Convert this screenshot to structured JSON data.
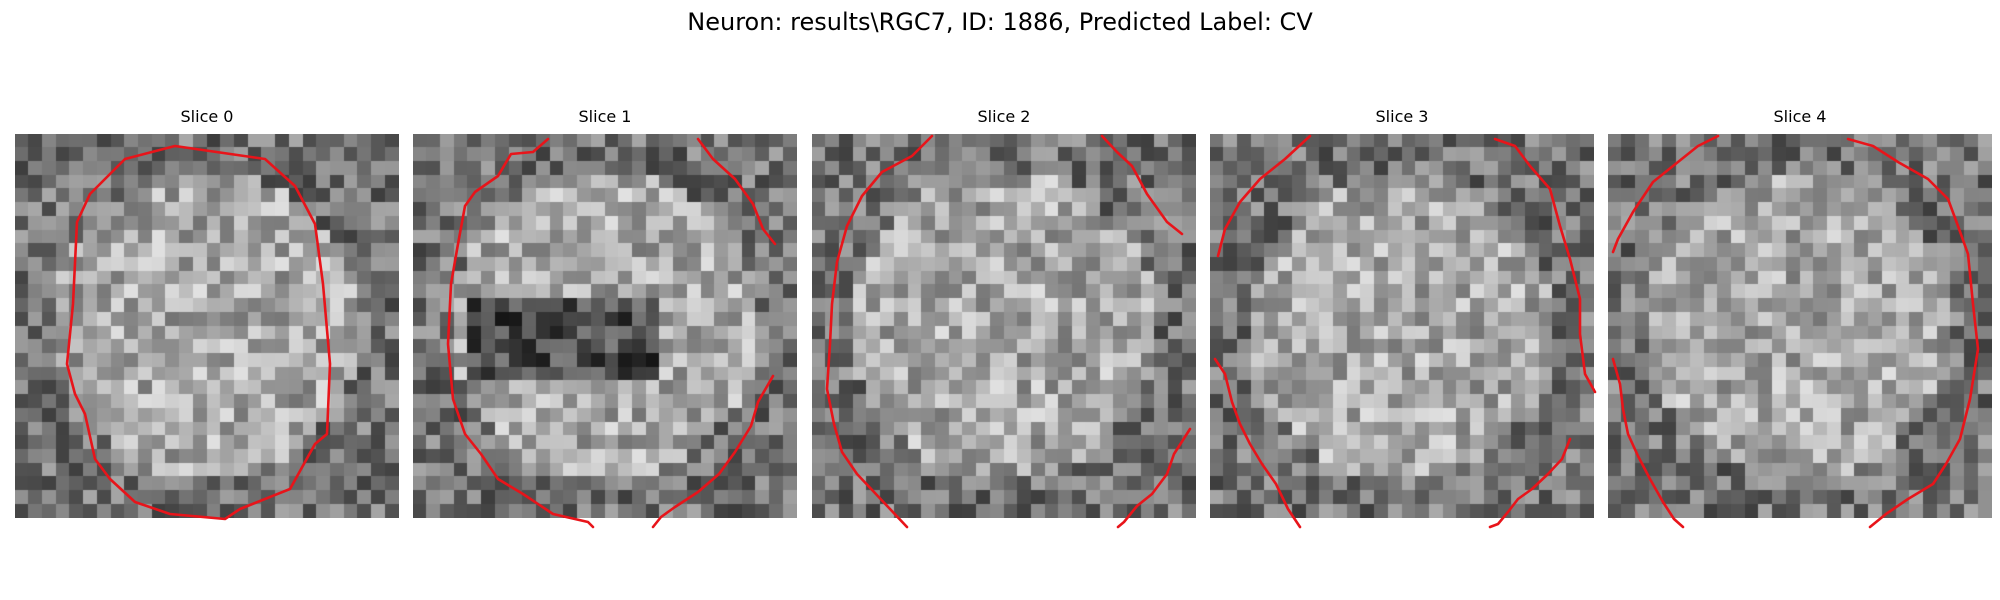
{
  "figure": {
    "title": "Neuron: results\\RGC7, ID: 1886, Predicted Label: CV"
  },
  "colors": {
    "background": "#ffffff",
    "contour": "#e8141a"
  },
  "colormap": "gray",
  "panels": [
    {
      "title": "Slice 0"
    },
    {
      "title": "Slice 1"
    },
    {
      "title": "Slice 2"
    },
    {
      "title": "Slice 3"
    },
    {
      "title": "Slice 4"
    }
  ]
}
